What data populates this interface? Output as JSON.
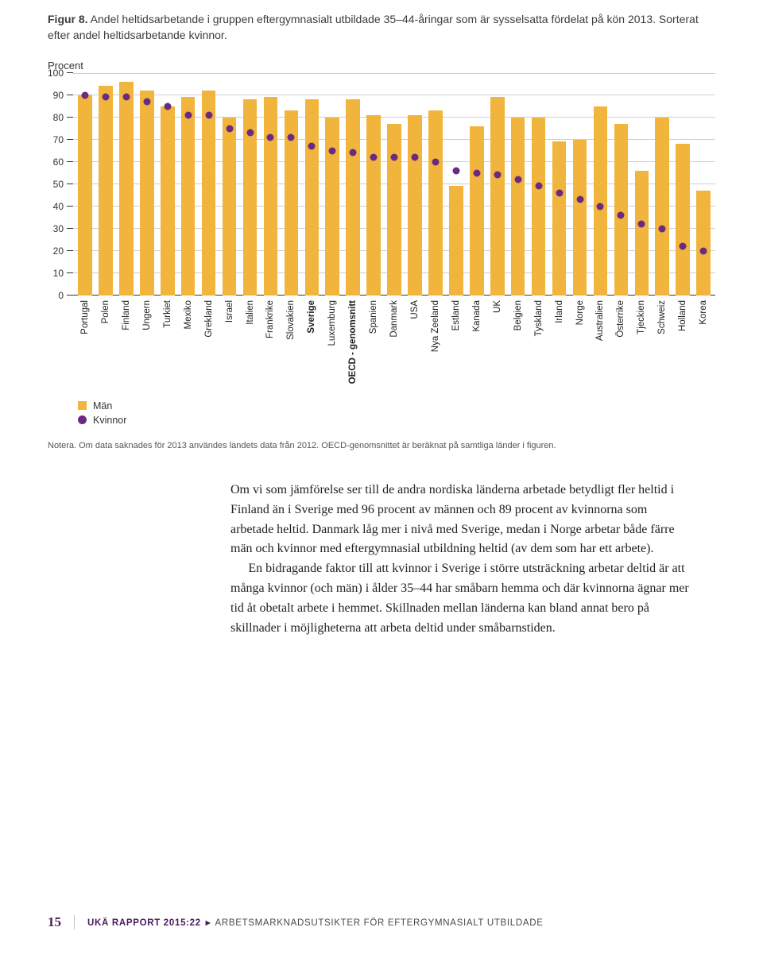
{
  "figure": {
    "label": "Figur 8.",
    "title_rest": " Andel heltidsarbetande i gruppen eftergymnasialt utbildade 35–44-åringar som är sysselsatta fördelat på kön 2013. Sorterat efter andel heltidsarbetande kvinnor.",
    "y_axis_label": "Procent",
    "ymax": 100,
    "ytick_step": 10,
    "yticks": [
      100,
      90,
      80,
      70,
      60,
      50,
      40,
      30,
      20,
      10,
      0
    ],
    "bar_color": "#f1b43c",
    "dot_color": "#6a2a82",
    "grid_color": "#cfcfcf",
    "axis_color": "#333333",
    "background_color": "#ffffff",
    "legend": {
      "men": "Män",
      "women": "Kvinnor"
    },
    "categories": [
      {
        "label": "Portugal",
        "men": 90,
        "women": 90,
        "bold": false
      },
      {
        "label": "Polen",
        "men": 94,
        "women": 89,
        "bold": false
      },
      {
        "label": "Finland",
        "men": 96,
        "women": 89,
        "bold": false
      },
      {
        "label": "Ungern",
        "men": 92,
        "women": 87,
        "bold": false
      },
      {
        "label": "Turkiet",
        "men": 85,
        "women": 85,
        "bold": false
      },
      {
        "label": "Mexiko",
        "men": 89,
        "women": 81,
        "bold": false
      },
      {
        "label": "Grekland",
        "men": 92,
        "women": 81,
        "bold": false
      },
      {
        "label": "Israel",
        "men": 80,
        "women": 75,
        "bold": false
      },
      {
        "label": "Italien",
        "men": 88,
        "women": 73,
        "bold": false
      },
      {
        "label": "Frankrike",
        "men": 89,
        "women": 71,
        "bold": false
      },
      {
        "label": "Slovakien",
        "men": 83,
        "women": 71,
        "bold": false
      },
      {
        "label": "Sverige",
        "men": 88,
        "women": 67,
        "bold": true
      },
      {
        "label": "Luxemburg",
        "men": 80,
        "women": 65,
        "bold": false
      },
      {
        "label": "OECD - genomsnitt",
        "men": 88,
        "women": 64,
        "bold": true
      },
      {
        "label": "Spanien",
        "men": 81,
        "women": 62,
        "bold": false
      },
      {
        "label": "Danmark",
        "men": 77,
        "women": 62,
        "bold": false
      },
      {
        "label": "USA",
        "men": 81,
        "women": 62,
        "bold": false
      },
      {
        "label": "Nya Zeeland",
        "men": 83,
        "women": 60,
        "bold": false
      },
      {
        "label": "Estland",
        "men": 49,
        "women": 56,
        "bold": false
      },
      {
        "label": "Kanada",
        "men": 76,
        "women": 55,
        "bold": false
      },
      {
        "label": "UK",
        "men": 89,
        "women": 54,
        "bold": false
      },
      {
        "label": "Belgien",
        "men": 80,
        "women": 52,
        "bold": false
      },
      {
        "label": "Tyskland",
        "men": 80,
        "women": 49,
        "bold": false
      },
      {
        "label": "Irland",
        "men": 69,
        "women": 46,
        "bold": false
      },
      {
        "label": "Norge",
        "men": 70,
        "women": 43,
        "bold": false
      },
      {
        "label": "Australien",
        "men": 85,
        "women": 40,
        "bold": false
      },
      {
        "label": "Österrike",
        "men": 77,
        "women": 36,
        "bold": false
      },
      {
        "label": "Tjeckien",
        "men": 56,
        "women": 32,
        "bold": false
      },
      {
        "label": "Schweiz",
        "men": 80,
        "women": 30,
        "bold": false
      },
      {
        "label": "Holland",
        "men": 68,
        "women": 22,
        "bold": false
      },
      {
        "label": "Korea",
        "men": 47,
        "women": 20,
        "bold": false
      }
    ]
  },
  "note": "Notera. Om data saknades för 2013 användes landets data från 2012. OECD-genomsnittet är beräknat på samtliga länder i figuren.",
  "body": {
    "p1": "Om vi som jämförelse ser till de andra nordiska länderna arbetade betydligt fler heltid i Finland än i Sverige med 96 procent av männen och 89 procent av kvinnorna som arbetade heltid. Danmark låg mer i nivå med Sverige, medan i Norge arbetar både färre män och kvinnor med eftergymnasial utbildning heltid (av dem som har ett arbete).",
    "p2": "En bidragande faktor till att kvinnor i Sverige i större utsträckning arbetar deltid är att många kvinnor (och män) i ålder 35–44 har småbarn hemma och där kvinnorna ägnar mer tid åt obetalt arbete i hemmet. Skillnaden mellan länderna kan bland annat bero på skillnader i möjligheterna att arbeta deltid under småbarnstiden."
  },
  "footer": {
    "page": "15",
    "report": "UKÄ RAPPORT 2015:22",
    "arrow": "▸",
    "subtitle": "ARBETSMARKNADSUTSIKTER FÖR EFTERGYMNASIALT UTBILDADE"
  },
  "colors": {
    "heading_purple": "#4b1a5a"
  }
}
